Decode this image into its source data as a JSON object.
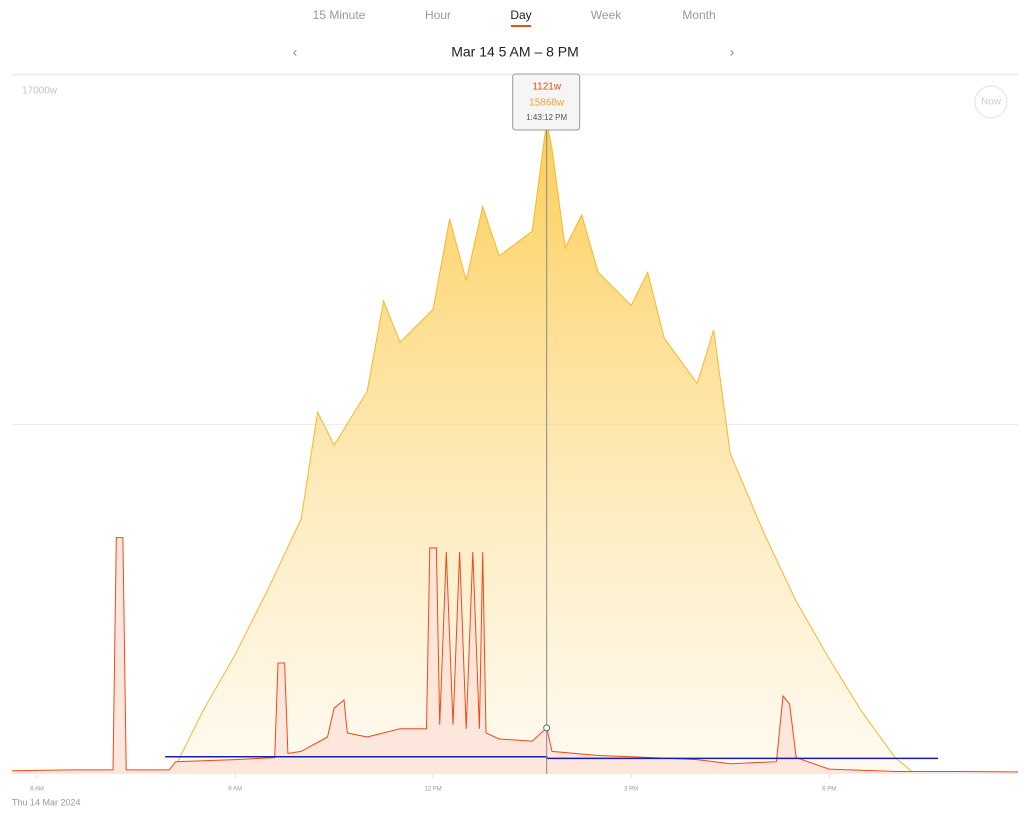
{
  "tabs": [
    "15 Minute",
    "Hour",
    "Day",
    "Week",
    "Month"
  ],
  "selected_tab": 2,
  "nav_title": "Mar 14 5 AM – 8 PM",
  "now_button": "Now",
  "date_label": "Thu 14 Mar 2024",
  "chart_data": {
    "type": "area",
    "xlim": [
      5.62,
      20.86
    ],
    "ylim": [
      0,
      17000
    ],
    "xticks": [
      {
        "value": 6,
        "label": "6 AM"
      },
      {
        "value": 9,
        "label": "9 AM"
      },
      {
        "value": 12,
        "label": "12 PM"
      },
      {
        "value": 15,
        "label": "3 PM"
      },
      {
        "value": 18,
        "label": "6 PM"
      }
    ],
    "yticks": [
      {
        "value": 17000,
        "label": "17000w"
      }
    ],
    "gridlines": [
      8500,
      17000
    ],
    "series": [
      {
        "color": "#f5b82e",
        "fill": "gradient",
        "x": [
          7.9,
          8.1,
          8.5,
          9,
          9.5,
          10,
          10.25,
          10.5,
          11,
          11.25,
          11.5,
          12,
          12.25,
          12.5,
          12.75,
          13,
          13.5,
          13.72,
          13.8,
          14,
          14.25,
          14.5,
          15,
          15.25,
          15.5,
          16,
          16.25,
          16.5,
          17,
          17.5,
          18,
          18.5,
          19,
          19.3
        ],
        "values": [
          0,
          200,
          1500,
          2900,
          4500,
          6200,
          8800,
          8000,
          9300,
          11500,
          10500,
          11300,
          13500,
          12000,
          13800,
          12600,
          13200,
          15868,
          15200,
          12800,
          13600,
          12200,
          11400,
          12200,
          10600,
          9500,
          10800,
          7800,
          5900,
          4200,
          2800,
          1500,
          400,
          0
        ]
      },
      {
        "color": "#f04a16",
        "fill": "#fde3d9",
        "x": [
          5.62,
          6.5,
          7.15,
          7.2,
          7.3,
          7.35,
          8,
          8.1,
          9,
          9.6,
          9.65,
          9.75,
          9.8,
          10,
          10.4,
          10.5,
          10.65,
          10.7,
          11,
          11.5,
          11.9,
          11.95,
          12.05,
          12.1,
          12.2,
          12.3,
          12.4,
          12.5,
          12.6,
          12.7,
          12.75,
          12.8,
          13,
          13.5,
          13.72,
          13.8,
          14.5,
          15,
          16,
          16.5,
          17.2,
          17.3,
          17.4,
          17.5,
          18,
          19,
          20,
          20.86
        ],
        "values": [
          80,
          100,
          100,
          5750,
          5750,
          100,
          100,
          300,
          350,
          400,
          2700,
          2700,
          500,
          550,
          900,
          1600,
          1800,
          1000,
          900,
          1100,
          1100,
          5500,
          5500,
          1200,
          5400,
          1200,
          5400,
          1100,
          5400,
          1100,
          5400,
          1000,
          850,
          800,
          1121,
          550,
          450,
          420,
          350,
          250,
          300,
          1900,
          1700,
          400,
          120,
          60,
          60,
          50
        ]
      },
      {
        "color": "#1c1caa",
        "fill": "none",
        "x": [
          7.94,
          13.72,
          13.72,
          19.65
        ],
        "values": [
          420,
          420,
          380,
          380
        ]
      }
    ],
    "tooltip": {
      "x": {
        "value": 13.72,
        "label": "1:43:12 PM"
      },
      "values": [
        1121,
        15868
      ],
      "value_labels": [
        "1121w",
        "15868w"
      ],
      "colors": [
        "#f04a16",
        "#f5a623"
      ]
    }
  }
}
